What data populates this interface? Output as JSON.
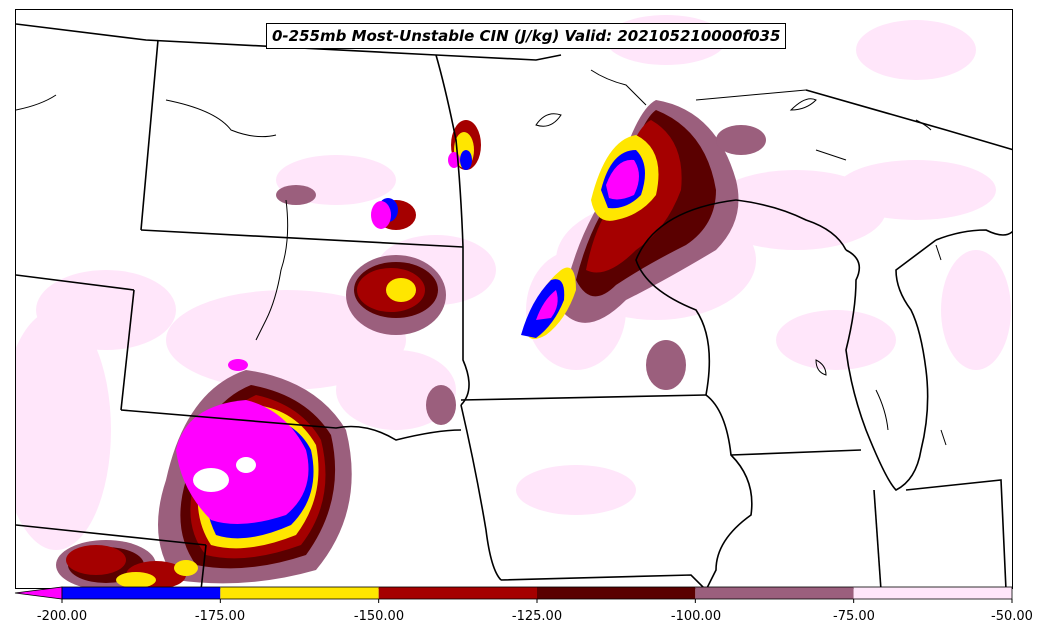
{
  "title": "0-255mb Most-Unstable CIN (J/kg) Valid: 202105210000f035",
  "colorbar": {
    "tick_labels": [
      "-200.00",
      "-175.00",
      "-150.00",
      "-125.00",
      "-100.00",
      "-75.00",
      "-50.00"
    ],
    "levels": [
      -200,
      -175,
      -150,
      -125,
      -100,
      -75,
      -50
    ],
    "under_color": "#ff00ff",
    "colors": [
      "#0000ff",
      "#ffe600",
      "#a50000",
      "#5a0000",
      "#9b5f7d",
      "#ffe6fa"
    ],
    "extend": "min"
  },
  "map": {
    "region": "Upper Midwest / Northern Plains, USA",
    "field": "0-255mb Most-Unstable CIN",
    "units": "J/kg",
    "valid": "202105210000f035"
  }
}
